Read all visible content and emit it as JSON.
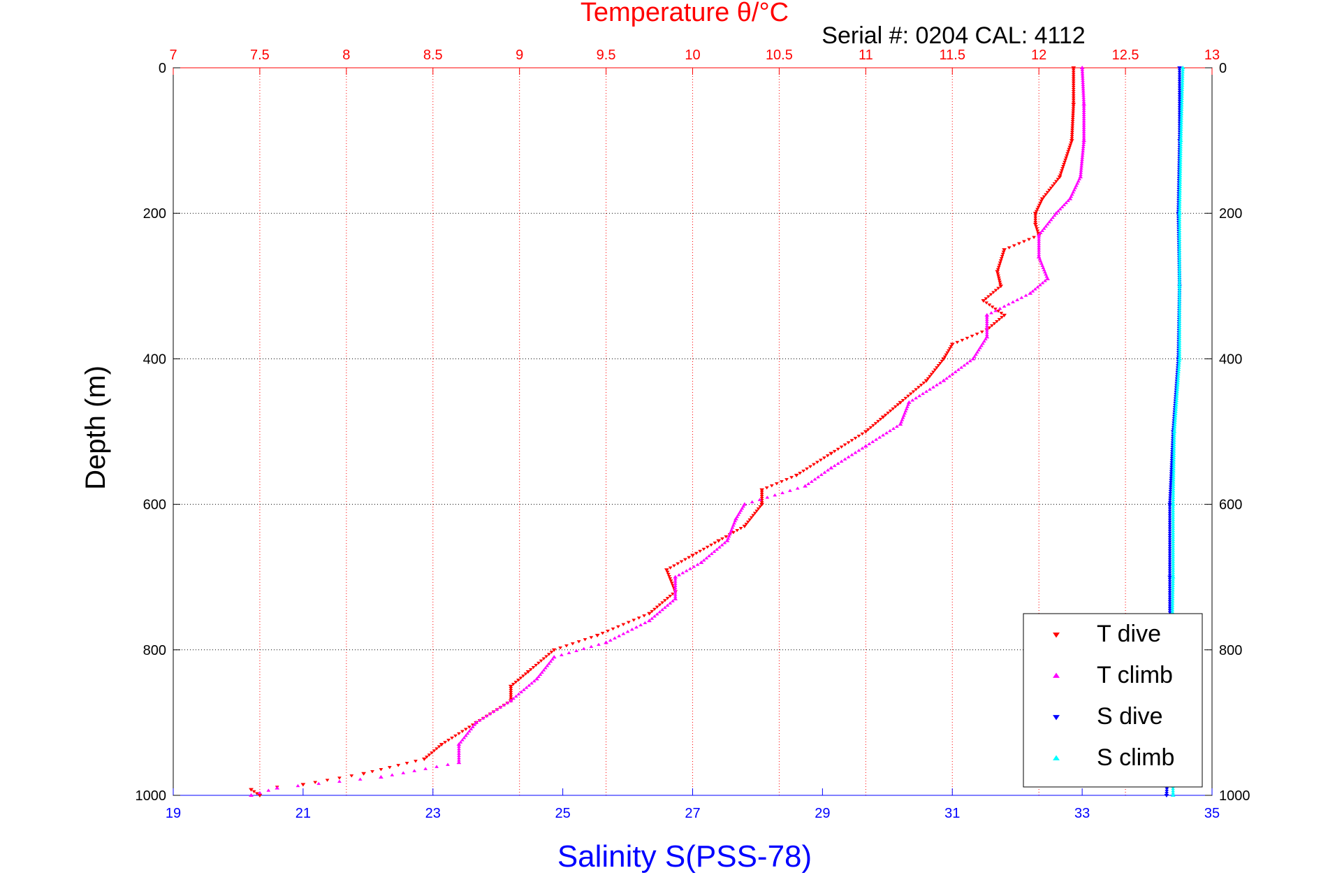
{
  "chart_data": {
    "type": "scatter",
    "title": "Temperature θ/°C",
    "subtitle": "Serial #: 0204  CAL: 4112",
    "ylabel": "Depth (m)",
    "xlabel": "Salinity S(PSS-78)",
    "ylim": [
      0,
      1000
    ],
    "y_reversed": true,
    "temperature_axis": {
      "range": [
        7,
        13
      ],
      "ticks": [
        "7",
        "7.5",
        "8",
        "8.5",
        "9",
        "9.5",
        "10",
        "10.5",
        "11",
        "11.5",
        "12",
        "12.5",
        "13"
      ]
    },
    "salinity_axis": {
      "range": [
        19,
        35
      ],
      "ticks": [
        "19",
        "21",
        "23",
        "25",
        "27",
        "29",
        "31",
        "33",
        "35"
      ]
    },
    "depth_ticks": [
      "0",
      "200",
      "400",
      "600",
      "800",
      "1000"
    ],
    "grid": true,
    "legend_position": "bottom-right",
    "series": [
      {
        "name": "T dive",
        "axis": "temperature",
        "color": "#ff0000",
        "marker": "down-triangle",
        "points": [
          {
            "depth": 0,
            "value": 12.2
          },
          {
            "depth": 50,
            "value": 12.2
          },
          {
            "depth": 100,
            "value": 12.19
          },
          {
            "depth": 150,
            "value": 12.12
          },
          {
            "depth": 180,
            "value": 12.02
          },
          {
            "depth": 200,
            "value": 11.98
          },
          {
            "depth": 215,
            "value": 11.98
          },
          {
            "depth": 230,
            "value": 12.0
          },
          {
            "depth": 250,
            "value": 11.8
          },
          {
            "depth": 280,
            "value": 11.76
          },
          {
            "depth": 300,
            "value": 11.78
          },
          {
            "depth": 320,
            "value": 11.68
          },
          {
            "depth": 340,
            "value": 11.8
          },
          {
            "depth": 360,
            "value": 11.7
          },
          {
            "depth": 380,
            "value": 11.5
          },
          {
            "depth": 400,
            "value": 11.45
          },
          {
            "depth": 430,
            "value": 11.35
          },
          {
            "depth": 460,
            "value": 11.2
          },
          {
            "depth": 480,
            "value": 11.1
          },
          {
            "depth": 500,
            "value": 11.0
          },
          {
            "depth": 530,
            "value": 10.8
          },
          {
            "depth": 560,
            "value": 10.6
          },
          {
            "depth": 580,
            "value": 10.4
          },
          {
            "depth": 600,
            "value": 10.4
          },
          {
            "depth": 630,
            "value": 10.3
          },
          {
            "depth": 650,
            "value": 10.15
          },
          {
            "depth": 670,
            "value": 10.0
          },
          {
            "depth": 690,
            "value": 9.85
          },
          {
            "depth": 720,
            "value": 9.9
          },
          {
            "depth": 750,
            "value": 9.75
          },
          {
            "depth": 780,
            "value": 9.45
          },
          {
            "depth": 800,
            "value": 9.2
          },
          {
            "depth": 830,
            "value": 9.05
          },
          {
            "depth": 850,
            "value": 8.95
          },
          {
            "depth": 870,
            "value": 8.95
          },
          {
            "depth": 900,
            "value": 8.75
          },
          {
            "depth": 930,
            "value": 8.55
          },
          {
            "depth": 950,
            "value": 8.45
          },
          {
            "depth": 970,
            "value": 8.1
          },
          {
            "depth": 985,
            "value": 7.75
          },
          {
            "depth": 992,
            "value": 7.45
          },
          {
            "depth": 1000,
            "value": 7.5
          }
        ]
      },
      {
        "name": "T climb",
        "axis": "temperature",
        "color": "#ff00ff",
        "marker": "up-triangle",
        "points": [
          {
            "depth": 0,
            "value": 12.25
          },
          {
            "depth": 50,
            "value": 12.26
          },
          {
            "depth": 100,
            "value": 12.26
          },
          {
            "depth": 150,
            "value": 12.24
          },
          {
            "depth": 180,
            "value": 12.18
          },
          {
            "depth": 200,
            "value": 12.1
          },
          {
            "depth": 230,
            "value": 12.0
          },
          {
            "depth": 260,
            "value": 12.0
          },
          {
            "depth": 290,
            "value": 12.05
          },
          {
            "depth": 310,
            "value": 11.95
          },
          {
            "depth": 340,
            "value": 11.7
          },
          {
            "depth": 370,
            "value": 11.7
          },
          {
            "depth": 400,
            "value": 11.62
          },
          {
            "depth": 430,
            "value": 11.45
          },
          {
            "depth": 460,
            "value": 11.25
          },
          {
            "depth": 490,
            "value": 11.2
          },
          {
            "depth": 520,
            "value": 11.0
          },
          {
            "depth": 550,
            "value": 10.8
          },
          {
            "depth": 575,
            "value": 10.65
          },
          {
            "depth": 600,
            "value": 10.3
          },
          {
            "depth": 620,
            "value": 10.25
          },
          {
            "depth": 650,
            "value": 10.2
          },
          {
            "depth": 680,
            "value": 10.05
          },
          {
            "depth": 700,
            "value": 9.9
          },
          {
            "depth": 730,
            "value": 9.9
          },
          {
            "depth": 760,
            "value": 9.75
          },
          {
            "depth": 790,
            "value": 9.5
          },
          {
            "depth": 810,
            "value": 9.2
          },
          {
            "depth": 840,
            "value": 9.1
          },
          {
            "depth": 870,
            "value": 8.95
          },
          {
            "depth": 900,
            "value": 8.75
          },
          {
            "depth": 930,
            "value": 8.65
          },
          {
            "depth": 955,
            "value": 8.65
          },
          {
            "depth": 975,
            "value": 8.2
          },
          {
            "depth": 990,
            "value": 7.6
          },
          {
            "depth": 1000,
            "value": 7.45
          }
        ]
      },
      {
        "name": "S dive",
        "axis": "salinity",
        "color": "#0000ff",
        "marker": "down-triangle",
        "points": [
          {
            "depth": 0,
            "value": 34.5
          },
          {
            "depth": 100,
            "value": 34.5
          },
          {
            "depth": 200,
            "value": 34.48
          },
          {
            "depth": 300,
            "value": 34.5
          },
          {
            "depth": 400,
            "value": 34.48
          },
          {
            "depth": 500,
            "value": 34.4
          },
          {
            "depth": 600,
            "value": 34.35
          },
          {
            "depth": 700,
            "value": 34.35
          },
          {
            "depth": 800,
            "value": 34.35
          },
          {
            "depth": 900,
            "value": 34.35
          },
          {
            "depth": 1000,
            "value": 34.3
          }
        ]
      },
      {
        "name": "S climb",
        "axis": "salinity",
        "color": "#00ffff",
        "marker": "up-triangle",
        "points": [
          {
            "depth": 0,
            "value": 34.55
          },
          {
            "depth": 100,
            "value": 34.52
          },
          {
            "depth": 200,
            "value": 34.5
          },
          {
            "depth": 300,
            "value": 34.5
          },
          {
            "depth": 400,
            "value": 34.5
          },
          {
            "depth": 500,
            "value": 34.42
          },
          {
            "depth": 600,
            "value": 34.4
          },
          {
            "depth": 700,
            "value": 34.4
          },
          {
            "depth": 800,
            "value": 34.38
          },
          {
            "depth": 900,
            "value": 34.38
          },
          {
            "depth": 1000,
            "value": 34.4
          }
        ]
      }
    ]
  }
}
